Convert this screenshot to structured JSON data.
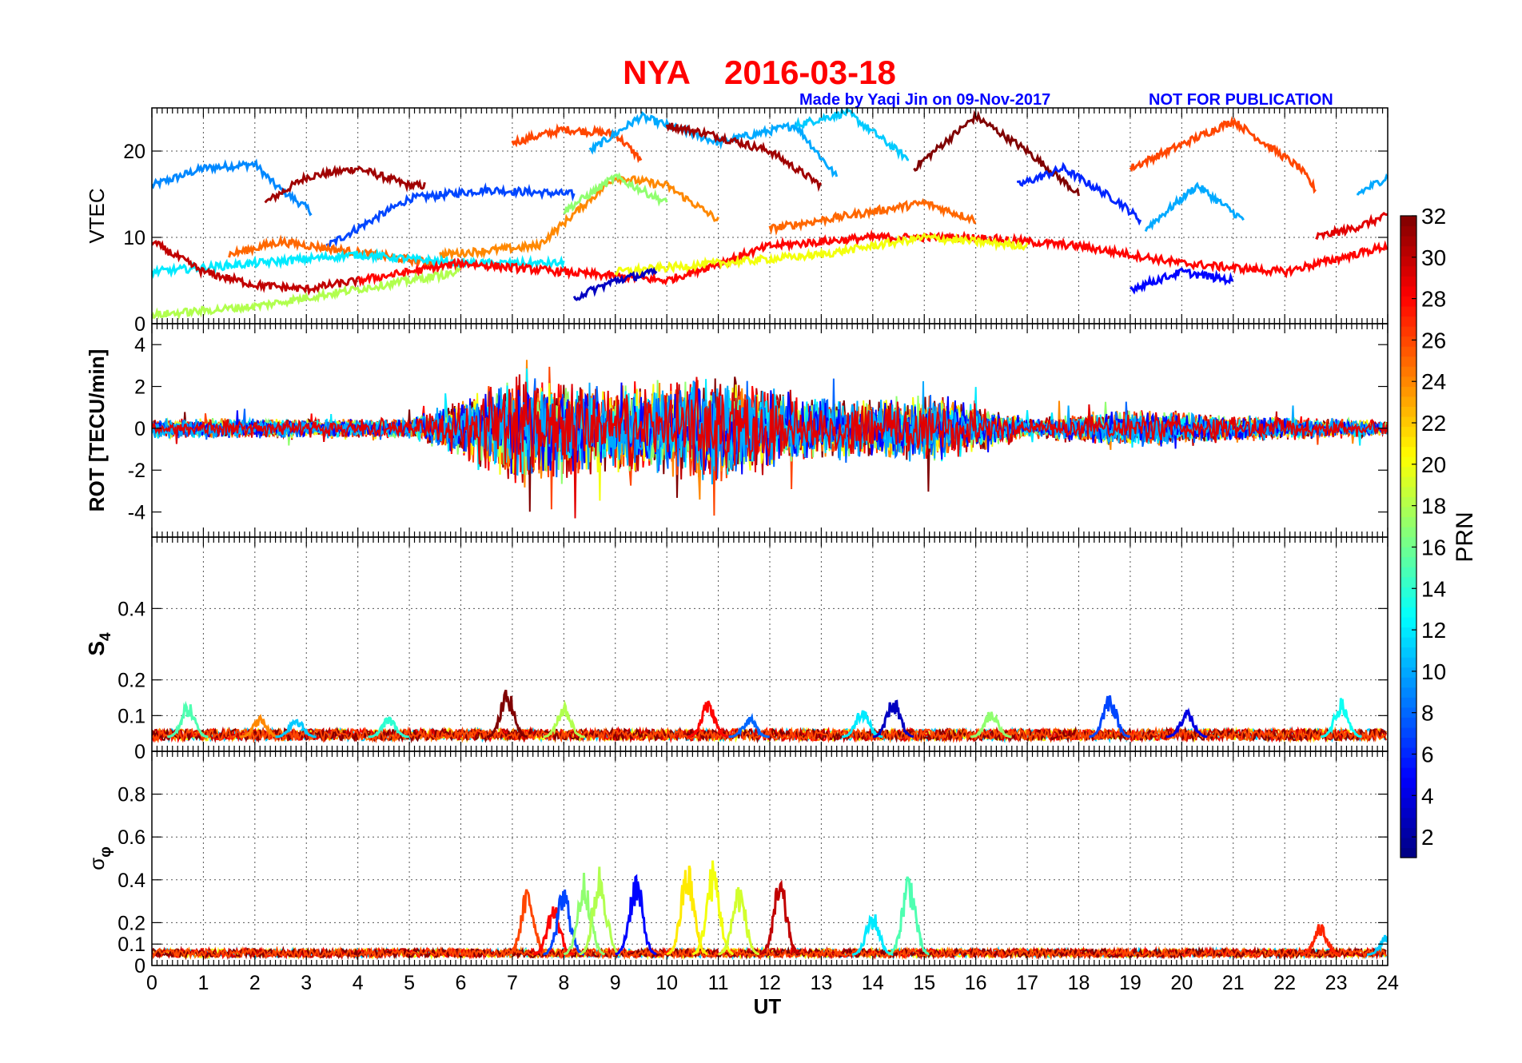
{
  "header": {
    "station": "NYA",
    "date": "2016-03-18",
    "credit": "Made by Yaqi Jin on 09-Nov-2017",
    "notice": "NOT FOR PUBLICATION"
  },
  "colors": {
    "title": "#ff0000",
    "credit": "#0000ff"
  },
  "colorbar": {
    "label": "PRN",
    "colormap": "jet",
    "range": [
      1,
      32
    ],
    "ticks": [
      2,
      4,
      6,
      8,
      10,
      12,
      14,
      16,
      18,
      20,
      22,
      24,
      26,
      28,
      30,
      32
    ]
  },
  "chart_data": [
    {
      "type": "line",
      "panel": "vtec",
      "ylabel": "VTEC",
      "ylim": [
        0,
        25
      ],
      "yticks": [
        0,
        10,
        20
      ],
      "xlim": [
        0,
        24
      ],
      "grid": true,
      "series_note": "one line per satellite PRN, colored by colorbar",
      "series": [
        {
          "prn": 9,
          "x": [
            0,
            1,
            2,
            2.4,
            3.1
          ],
          "y": [
            16,
            18,
            18.5,
            16,
            13
          ]
        },
        {
          "prn": 31,
          "x": [
            2.2,
            3,
            4,
            5,
            5.3
          ],
          "y": [
            14,
            17,
            18,
            16,
            16
          ]
        },
        {
          "prn": 7,
          "x": [
            3.4,
            5,
            6.5,
            8.2
          ],
          "y": [
            9,
            14.5,
            15.5,
            15
          ]
        },
        {
          "prn": 26,
          "x": [
            7,
            8,
            9,
            9.5
          ],
          "y": [
            21,
            22.5,
            22,
            19
          ]
        },
        {
          "prn": 10,
          "x": [
            8.5,
            9.5,
            11,
            12.5,
            13.3
          ],
          "y": [
            20,
            24,
            21,
            23,
            17
          ]
        },
        {
          "prn": 31,
          "x": [
            10,
            10.8,
            12,
            13
          ],
          "y": [
            23,
            22,
            20,
            16
          ]
        },
        {
          "prn": 11,
          "x": [
            12.5,
            13.5,
            14.7
          ],
          "y": [
            23,
            24.5,
            19
          ]
        },
        {
          "prn": 32,
          "x": [
            14.8,
            16,
            17,
            18
          ],
          "y": [
            18,
            24,
            20,
            15
          ]
        },
        {
          "prn": 6,
          "x": [
            16.8,
            17.7,
            18.8,
            19.2
          ],
          "y": [
            16,
            18,
            14,
            12
          ]
        },
        {
          "prn": 26,
          "x": [
            19,
            21,
            22.3,
            22.6
          ],
          "y": [
            18,
            23.5,
            18,
            15.5
          ]
        },
        {
          "prn": 10,
          "x": [
            19.3,
            20.3,
            21.2
          ],
          "y": [
            11,
            16,
            12
          ]
        },
        {
          "prn": 29,
          "x": [
            22.6,
            23.3,
            24
          ],
          "y": [
            10,
            11,
            12.5
          ]
        },
        {
          "prn": 10,
          "x": [
            23.4,
            24
          ],
          "y": [
            15,
            17
          ]
        },
        {
          "prn": 25,
          "x": [
            1.5,
            2.5,
            3.7,
            5.5
          ],
          "y": [
            8,
            9.5,
            8.5,
            7
          ]
        },
        {
          "prn": 24,
          "x": [
            5.6,
            7.5,
            9,
            10,
            11
          ],
          "y": [
            8,
            9,
            17,
            16,
            12
          ]
        },
        {
          "prn": 25,
          "x": [
            12,
            14,
            15,
            16
          ],
          "y": [
            11,
            13,
            14,
            12
          ]
        },
        {
          "prn": 17,
          "x": [
            8,
            9,
            10
          ],
          "y": [
            13,
            17,
            14
          ]
        },
        {
          "prn": 12,
          "x": [
            0,
            2,
            4,
            6,
            8
          ],
          "y": [
            6,
            7,
            8,
            7,
            7
          ]
        },
        {
          "prn": 30,
          "x": [
            0,
            1,
            2,
            3,
            4
          ],
          "y": [
            9.5,
            6,
            4.5,
            4,
            5
          ]
        },
        {
          "prn": 28,
          "x": [
            4,
            6,
            8,
            10,
            12,
            14,
            16,
            18,
            20,
            22,
            24
          ],
          "y": [
            5,
            7,
            6,
            5,
            9,
            10,
            10,
            9,
            7,
            6,
            9
          ]
        },
        {
          "prn": 20,
          "x": [
            9,
            11,
            13,
            15,
            17
          ],
          "y": [
            6,
            7,
            8,
            10,
            9
          ]
        },
        {
          "prn": 18,
          "x": [
            0,
            2,
            4,
            6
          ],
          "y": [
            1,
            2,
            4,
            6
          ]
        },
        {
          "prn": 3,
          "x": [
            8.2,
            9,
            9.8
          ],
          "y": [
            3,
            5,
            6
          ]
        },
        {
          "prn": 5,
          "x": [
            19,
            20,
            21
          ],
          "y": [
            4,
            6,
            5
          ]
        }
      ]
    },
    {
      "type": "line",
      "panel": "rot",
      "ylabel": "ROT [TECU/min]",
      "ylim": [
        -5.2,
        5
      ],
      "yticks": [
        -4,
        -2,
        0,
        2,
        4
      ],
      "xlim": [
        0,
        24
      ],
      "grid": false,
      "activity_envelope": {
        "x": [
          0,
          5,
          6,
          7,
          8,
          9,
          10,
          11,
          12,
          13,
          14,
          15,
          16,
          17,
          18,
          19,
          20,
          21,
          22,
          23,
          24
        ],
        "amplitude": [
          0.4,
          0.4,
          1.2,
          2.2,
          2.0,
          1.8,
          2.0,
          2.2,
          1.8,
          1.2,
          1.2,
          1.4,
          1.1,
          0.4,
          0.6,
          0.8,
          0.7,
          0.5,
          0.5,
          0.4,
          0.3
        ]
      }
    },
    {
      "type": "line",
      "panel": "s4",
      "ylabel": "S4",
      "ylim": [
        0,
        0.6
      ],
      "yticks": [
        0,
        0.1,
        0.2,
        0.4
      ],
      "xlim": [
        0,
        24
      ],
      "grid": true,
      "baseline": 0.04,
      "peaks": [
        {
          "x": 0.7,
          "y": 0.14,
          "prn": 15
        },
        {
          "x": 2.1,
          "y": 0.1,
          "prn": 24
        },
        {
          "x": 2.8,
          "y": 0.1,
          "prn": 11
        },
        {
          "x": 4.6,
          "y": 0.1,
          "prn": 14
        },
        {
          "x": 6.9,
          "y": 0.18,
          "prn": 32
        },
        {
          "x": 8.0,
          "y": 0.14,
          "prn": 18
        },
        {
          "x": 10.8,
          "y": 0.15,
          "prn": 28
        },
        {
          "x": 11.6,
          "y": 0.1,
          "prn": 8
        },
        {
          "x": 13.8,
          "y": 0.13,
          "prn": 12
        },
        {
          "x": 14.4,
          "y": 0.16,
          "prn": 3
        },
        {
          "x": 16.3,
          "y": 0.12,
          "prn": 17
        },
        {
          "x": 18.6,
          "y": 0.17,
          "prn": 7
        },
        {
          "x": 20.1,
          "y": 0.12,
          "prn": 4
        },
        {
          "x": 23.1,
          "y": 0.15,
          "prn": 13
        }
      ]
    },
    {
      "type": "line",
      "panel": "sigma_phi",
      "ylabel": "σφ",
      "ylim": [
        0,
        1
      ],
      "yticks": [
        0,
        0.1,
        0.2,
        0.4,
        0.6,
        0.8
      ],
      "xlim": [
        0,
        24
      ],
      "xlabel": "UT",
      "xticks": [
        0,
        1,
        2,
        3,
        4,
        5,
        6,
        7,
        8,
        9,
        10,
        11,
        12,
        13,
        14,
        15,
        16,
        17,
        18,
        19,
        20,
        21,
        22,
        23,
        24
      ],
      "grid": true,
      "baseline": 0.05,
      "peaks": [
        {
          "x": 7.3,
          "y": 0.38,
          "prn": 26
        },
        {
          "x": 7.8,
          "y": 0.3,
          "prn": 28
        },
        {
          "x": 8.0,
          "y": 0.38,
          "prn": 7
        },
        {
          "x": 8.4,
          "y": 0.45,
          "prn": 17
        },
        {
          "x": 8.7,
          "y": 0.48,
          "prn": 18
        },
        {
          "x": 9.4,
          "y": 0.45,
          "prn": 5
        },
        {
          "x": 10.4,
          "y": 0.5,
          "prn": 21
        },
        {
          "x": 10.9,
          "y": 0.5,
          "prn": 20
        },
        {
          "x": 11.4,
          "y": 0.4,
          "prn": 19
        },
        {
          "x": 12.2,
          "y": 0.42,
          "prn": 30
        },
        {
          "x": 14.0,
          "y": 0.26,
          "prn": 12
        },
        {
          "x": 14.7,
          "y": 0.46,
          "prn": 15
        },
        {
          "x": 22.7,
          "y": 0.2,
          "prn": 27
        },
        {
          "x": 24.0,
          "y": 0.16,
          "prn": 11
        }
      ]
    }
  ]
}
